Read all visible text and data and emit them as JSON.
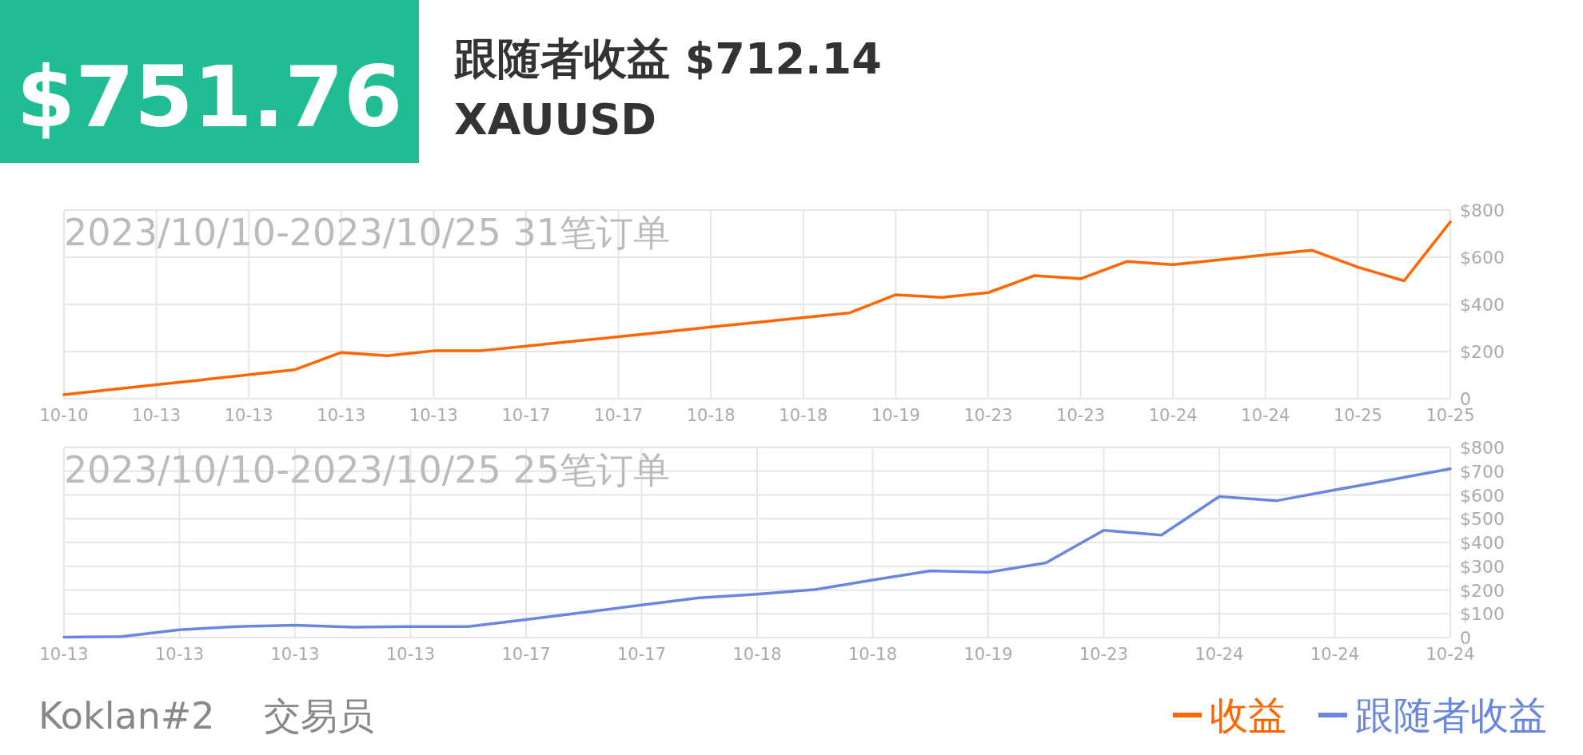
{
  "chart_data": [
    {
      "type": "line",
      "title": "2023/10/10-2023/10/25 31笔订单",
      "annotations": [
        "$751.76",
        "跟随者收益 $712.14",
        "XAUUSD"
      ],
      "categories": [
        "10-10",
        null,
        "10-13",
        null,
        "10-13",
        null,
        "10-13",
        null,
        "10-13",
        null,
        "10-17",
        null,
        "10-17",
        null,
        "10-18",
        null,
        "10-18",
        null,
        "10-19",
        null,
        "10-23",
        null,
        "10-23",
        null,
        "10-24",
        null,
        "10-24",
        null,
        "10-25",
        null,
        "10-25"
      ],
      "series": [
        {
          "name": "收益",
          "color": "#ff6600",
          "values": [
            17,
            38,
            59,
            80,
            102,
            123,
            196,
            182,
            203,
            203,
            223,
            243,
            263,
            283,
            304,
            324,
            344,
            364,
            441,
            430,
            450,
            522,
            509,
            582,
            569,
            589,
            610,
            630,
            558,
            500,
            750
          ]
        }
      ],
      "ylim": [
        0,
        800
      ],
      "yticks": [
        0,
        {
          "value": 200,
          "label": "$200"
        },
        {
          "value": 400,
          "label": "$400"
        },
        {
          "value": 600,
          "label": "$600"
        },
        {
          "value": 800,
          "label": "$800"
        }
      ],
      "grid": true,
      "legend": "bottom right",
      "marker": "none",
      "line_style": "solid"
    },
    {
      "type": "line",
      "title": "2023/10/10-2023/10/25 25笔订单",
      "annotations": [
        "Koklan#2",
        "交易员"
      ],
      "categories": [
        "10-13",
        null,
        "10-13",
        null,
        "10-13",
        null,
        "10-13",
        null,
        "10-17",
        null,
        "10-17",
        null,
        "10-18",
        null,
        "10-18",
        null,
        "10-19",
        null,
        "10-23",
        null,
        "10-24",
        null,
        "10-24",
        null,
        "10-24"
      ],
      "series": [
        {
          "name": "跟随者收益",
          "color": "#6a87e0",
          "values": [
            2,
            4,
            33,
            46,
            52,
            44,
            46,
            46,
            76,
            106,
            137,
            167,
            182,
            202,
            242,
            281,
            275,
            314,
            451,
            431,
            593,
            576,
            621,
            665,
            710
          ]
        }
      ],
      "ylim": [
        0,
        800
      ],
      "yticks": [
        0,
        {
          "value": 100,
          "label": "$100"
        },
        {
          "value": 200,
          "label": "$200"
        },
        {
          "value": 300,
          "label": "$300"
        },
        {
          "value": 400,
          "label": "$400"
        },
        {
          "value": 500,
          "label": "$500"
        },
        {
          "value": 600,
          "label": "$600"
        },
        {
          "value": 700,
          "label": "$700"
        },
        {
          "value": 800,
          "label": "$800"
        }
      ],
      "grid": true,
      "legend": "bottom right",
      "marker": "none",
      "line_style": "solid"
    }
  ]
}
